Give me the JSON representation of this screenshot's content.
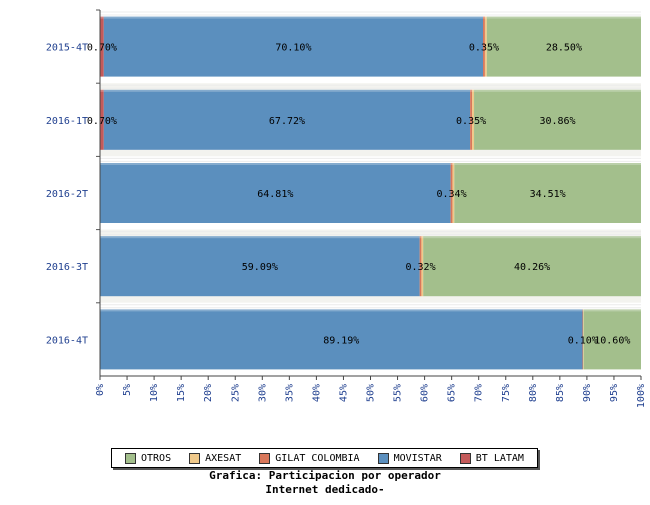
{
  "chart_data": {
    "type": "bar",
    "orientation": "horizontal",
    "stacked": true,
    "categories": [
      "2015-4T",
      "2016-1T",
      "2016-2T",
      "2016-3T",
      "2016-4T"
    ],
    "series": [
      {
        "name": "BT LATAM",
        "color": "#c45a5a",
        "values": [
          0.7,
          0.7,
          0.0,
          0.0,
          0.0
        ],
        "labels": [
          "0.70%",
          "0.70%",
          "",
          "",
          ""
        ]
      },
      {
        "name": "MOVISTAR",
        "color": "#5b8fbe",
        "values": [
          70.1,
          67.72,
          64.81,
          59.09,
          89.19
        ],
        "labels": [
          "70.10%",
          "67.72%",
          "64.81%",
          "59.09%",
          "89.19%"
        ]
      },
      {
        "name": "GILAT COLOMBIA",
        "color": "#d9775a",
        "values": [
          0.35,
          0.35,
          0.34,
          0.32,
          0.1
        ],
        "labels": [
          "0.35%",
          "0.35%",
          "0.34%",
          "0.32%",
          "0.10%"
        ]
      },
      {
        "name": "AXESAT",
        "color": "#f0c98a",
        "values": [
          0.35,
          0.37,
          0.34,
          0.33,
          0.11
        ],
        "labels": [
          "",
          "",
          "",
          "",
          ""
        ]
      },
      {
        "name": "OTROS",
        "color": "#a3bf8c",
        "values": [
          28.5,
          30.86,
          34.51,
          40.26,
          10.6
        ],
        "labels": [
          "28.50%",
          "30.86%",
          "34.51%",
          "40.26%",
          "10.60%"
        ]
      }
    ],
    "xlim": [
      0,
      100
    ],
    "xticks": [
      "0%",
      "5%",
      "10%",
      "15%",
      "20%",
      "25%",
      "30%",
      "35%",
      "40%",
      "45%",
      "50%",
      "55%",
      "60%",
      "65%",
      "70%",
      "75%",
      "80%",
      "85%",
      "90%",
      "95%",
      "100%"
    ],
    "legend": [
      "OTROS",
      "AXESAT",
      "GILAT COLOMBIA",
      "MOVISTAR",
      "BT LATAM"
    ],
    "legend_position": "bottom",
    "title": "Grafica: Participacion por operador",
    "subtitle": "Internet dedicado-"
  }
}
